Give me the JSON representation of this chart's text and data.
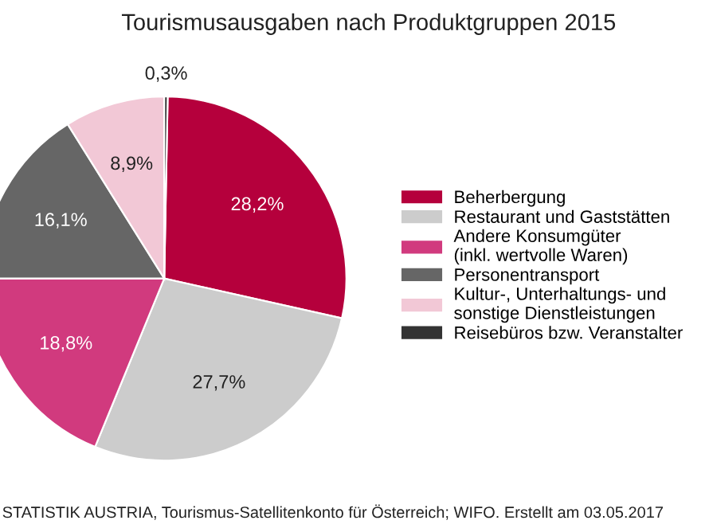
{
  "chart_data": {
    "type": "pie",
    "title": "Tourismusausgaben nach Produktgruppen 2015",
    "categories": [
      "Beherbergung",
      "Restaurant und Gaststätten",
      "Andere Konsumgüter\n(inkl. wertvolle Waren)",
      "Personentransport",
      "Kultur-, Unterhaltungs- und\nsonstige Dienstleistungen",
      "Reisebüros bzw. Veranstalter"
    ],
    "values": [
      28.2,
      27.7,
      18.8,
      16.1,
      8.9,
      0.3
    ],
    "value_labels": [
      "28,2%",
      "27,7%",
      "18,8%",
      "16,1%",
      "8,9%",
      "0,3%"
    ],
    "colors": [
      "#b5003c",
      "#cccccc",
      "#d13a7e",
      "#666666",
      "#f2c8d6",
      "#333333"
    ],
    "legend": "right",
    "annotations": [
      "STATISTIK AUSTRIA, Tourismus-Satellitenkonto für Österreich; WIFO. Erstellt am 03.05.2017"
    ]
  }
}
